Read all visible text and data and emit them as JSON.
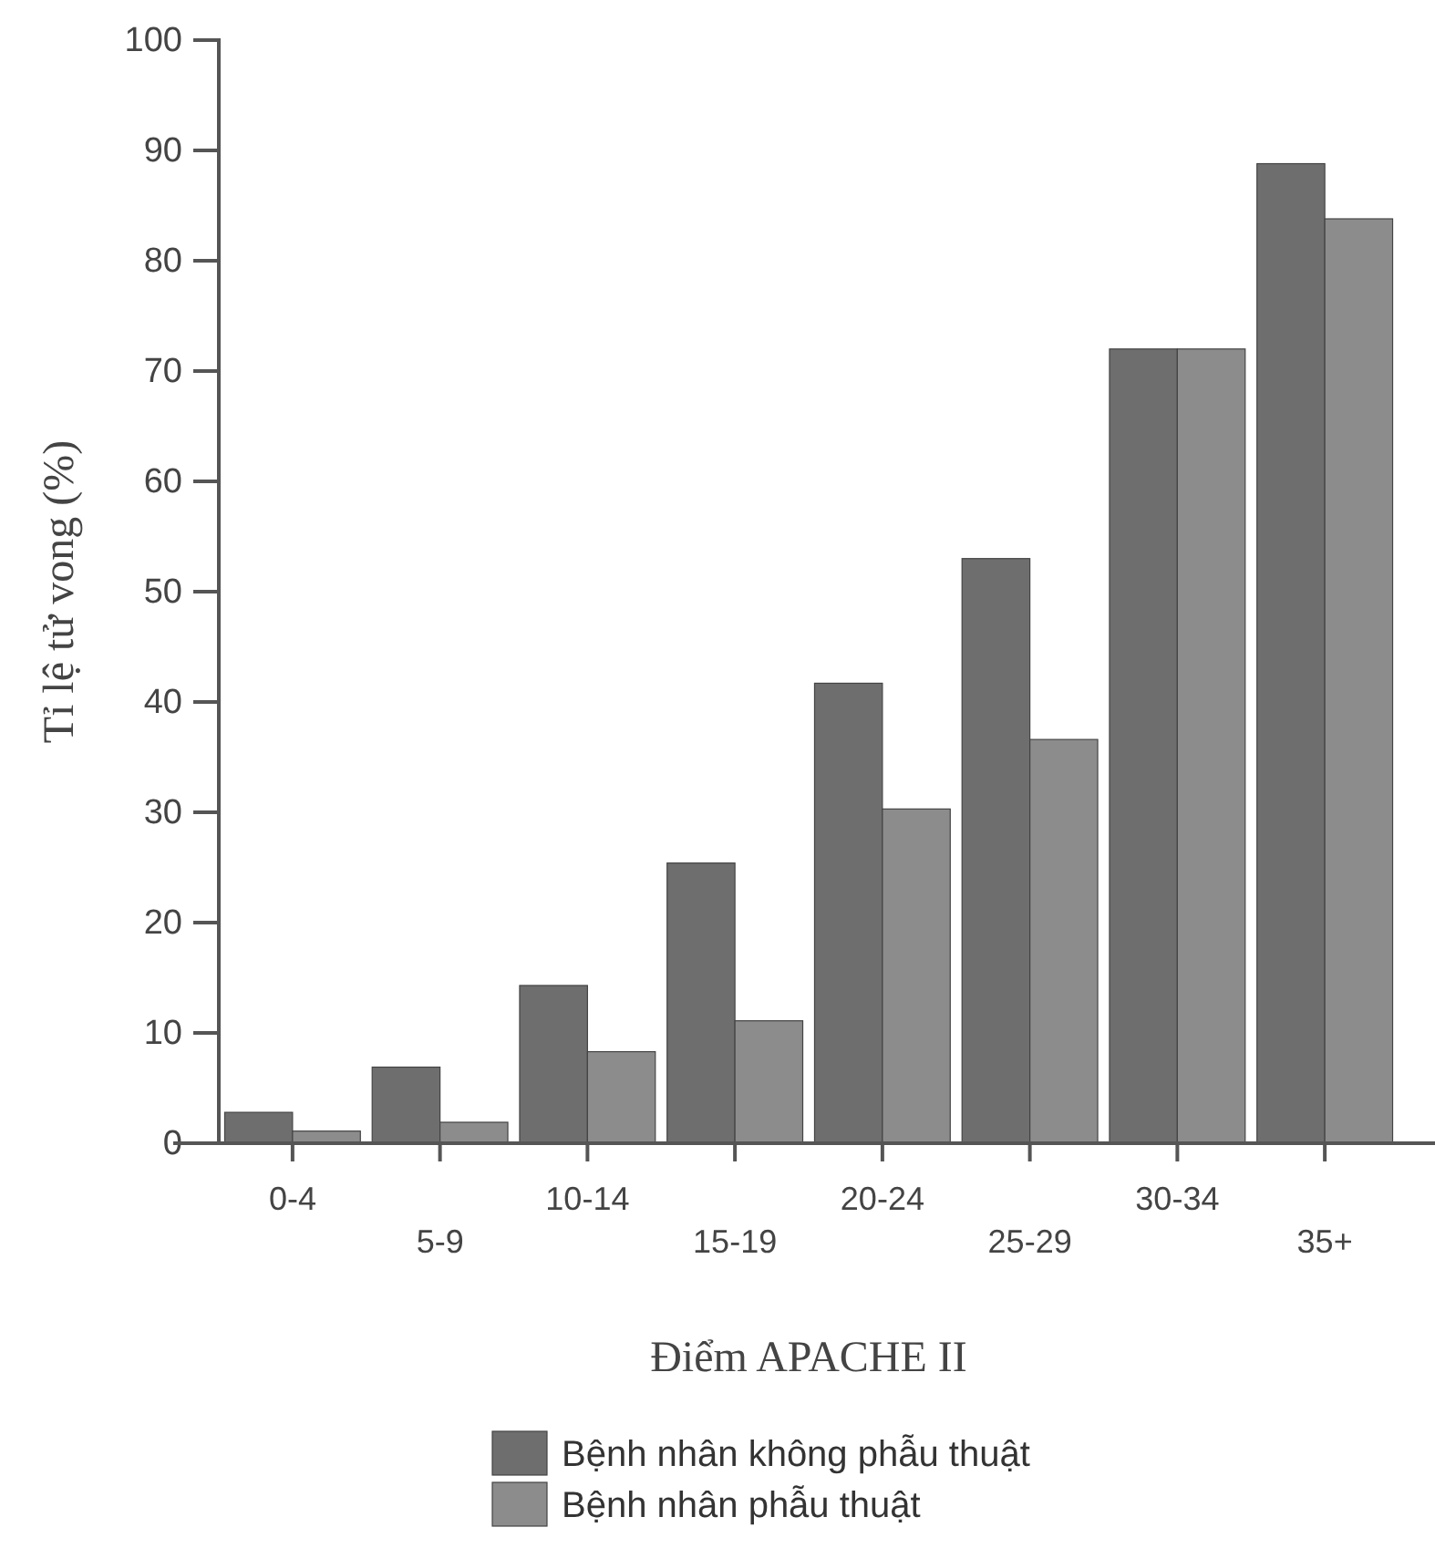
{
  "chart_data": {
    "type": "bar",
    "xlabel": "Điểm APACHE II",
    "ylabel": "Tỉ lệ tử vong (%)",
    "categories": [
      "0-4",
      "5-9",
      "10-14",
      "15-19",
      "20-24",
      "25-29",
      "30-34",
      "35+"
    ],
    "series": [
      {
        "name": "Bệnh nhân không phẫu thuật",
        "color": "#6e6e6e",
        "values": [
          2.8,
          6.9,
          14.3,
          25.4,
          41.7,
          53,
          72,
          88.8
        ]
      },
      {
        "name": "Bệnh nhân phẫu thuật",
        "color": "#8c8c8c",
        "values": [
          1.1,
          1.9,
          8.3,
          11.1,
          30.3,
          36.6,
          72,
          83.8
        ]
      }
    ],
    "ylim": [
      0,
      100
    ],
    "yticks": [
      0,
      10,
      20,
      30,
      40,
      50,
      60,
      70,
      80,
      90,
      100
    ],
    "grid": false,
    "legend": "bottom"
  }
}
